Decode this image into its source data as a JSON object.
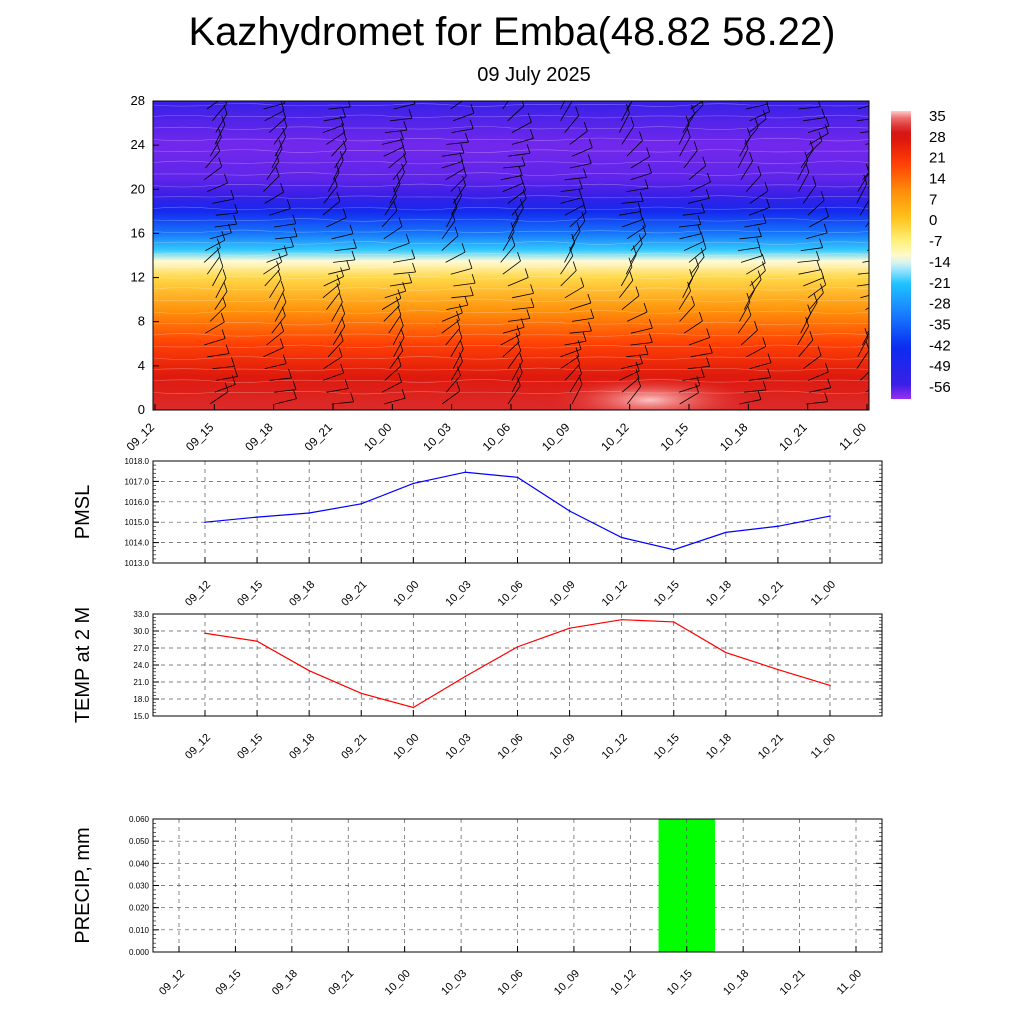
{
  "header": {
    "title": "Kazhydromet for Emba(48.82 58.22)",
    "date": "09 July 2025"
  },
  "chart_data": [
    {
      "type": "heatmap",
      "name": "vertical-cross-section",
      "x_ticks": [
        "09_12",
        "09_15",
        "09_18",
        "09_21",
        "10_00",
        "10_03",
        "10_06",
        "10_09",
        "10_12",
        "10_15",
        "10_18",
        "10_21",
        "11_00"
      ],
      "y_ticks": [
        "0",
        "4",
        "8",
        "12",
        "16",
        "20",
        "24",
        "28"
      ],
      "ylim": [
        0,
        28
      ],
      "colorbar": {
        "labels": [
          "35",
          "28",
          "21",
          "14",
          "7",
          "0",
          "-7",
          "-14",
          "-21",
          "-28",
          "-35",
          "-42",
          "-49",
          "-56"
        ],
        "range": [
          -60,
          38
        ]
      },
      "temperature_profile": {
        "level": [
          0,
          3,
          6,
          9,
          12,
          13.5,
          14.5,
          16,
          18,
          19.5,
          21,
          24,
          28
        ],
        "value": [
          32,
          28,
          20,
          10,
          -2,
          -12,
          -20,
          -32,
          -45,
          -55,
          -57,
          -58,
          -54
        ]
      }
    },
    {
      "type": "line",
      "name": "pmsl",
      "ylabel": "PMSL",
      "categories": [
        "09_12",
        "09_15",
        "09_18",
        "09_21",
        "10_00",
        "10_03",
        "10_06",
        "10_09",
        "10_12",
        "10_15",
        "10_18",
        "10_21",
        "11_00"
      ],
      "y_ticks": [
        "1013.0",
        "1014.0",
        "1015.0",
        "1016.0",
        "1017.0",
        "1018.0"
      ],
      "ylim": [
        1013,
        1018
      ],
      "color": "#0000ff",
      "values": [
        1015.0,
        1015.25,
        1015.45,
        1015.9,
        1016.9,
        1017.45,
        1017.2,
        1015.55,
        1014.25,
        1013.65,
        1014.5,
        1014.8,
        1015.3
      ]
    },
    {
      "type": "line",
      "name": "temp2m",
      "ylabel": "TEMP at 2 M",
      "categories": [
        "09_12",
        "09_15",
        "09_18",
        "09_21",
        "10_00",
        "10_03",
        "10_06",
        "10_09",
        "10_12",
        "10_15",
        "10_18",
        "10_21",
        "11_00"
      ],
      "y_ticks": [
        "15.0",
        "18.0",
        "21.0",
        "24.0",
        "27.0",
        "30.0",
        "33.0"
      ],
      "ylim": [
        15,
        33
      ],
      "color": "#ff0000",
      "values": [
        29.6,
        28.2,
        23.0,
        19.0,
        16.5,
        22.0,
        27.2,
        30.5,
        32.0,
        31.6,
        26.2,
        23.2,
        20.4
      ]
    },
    {
      "type": "bar",
      "name": "precip",
      "ylabel": "PRECIP, mm",
      "categories": [
        "09_12",
        "09_15",
        "09_18",
        "09_21",
        "10_00",
        "10_03",
        "10_06",
        "10_09",
        "10_12",
        "10_15",
        "10_18",
        "10_21",
        "11_00"
      ],
      "y_ticks": [
        "0.000",
        "0.010",
        "0.020",
        "0.030",
        "0.040",
        "0.050",
        "0.060"
      ],
      "ylim": [
        0,
        0.06
      ],
      "color": "#00ff00",
      "values": [
        0,
        0,
        0,
        0,
        0,
        0,
        0,
        0,
        0,
        0.06,
        0,
        0,
        0
      ]
    }
  ]
}
